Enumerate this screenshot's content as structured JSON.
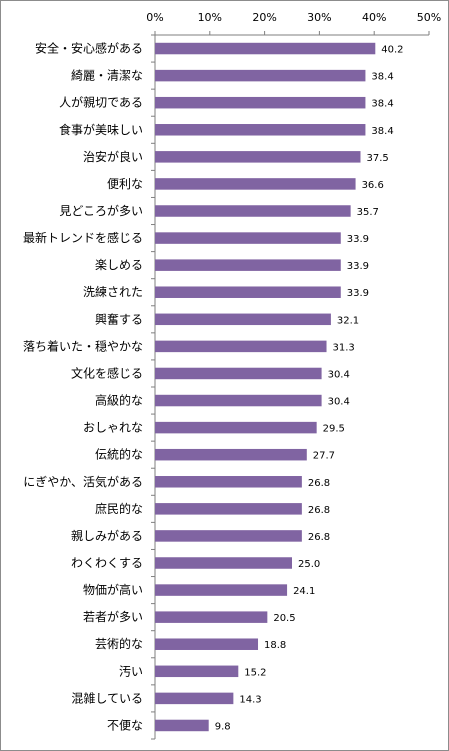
{
  "chart_data": {
    "type": "bar",
    "orientation": "horizontal",
    "categories": [
      "安全・安心感がある",
      "綺麗・清潔な",
      "人が親切である",
      "食事が美味しい",
      "治安が良い",
      "便利な",
      "見どころが多い",
      "最新トレンドを感じる",
      "楽しめる",
      "洗練された",
      "興奮する",
      "落ち着いた・穏やかな",
      "文化を感じる",
      "高級的な",
      "おしゃれな",
      "伝統的な",
      "にぎやか、活気がある",
      "庶民的な",
      "親しみがある",
      "わくわくする",
      "物価が高い",
      "若者が多い",
      "芸術的な",
      "汚い",
      "混雑している",
      "不便な"
    ],
    "values": [
      40.2,
      38.4,
      38.4,
      38.4,
      37.5,
      36.6,
      35.7,
      33.9,
      33.9,
      33.9,
      32.1,
      31.3,
      30.4,
      30.4,
      29.5,
      27.7,
      26.8,
      26.8,
      26.8,
      25.0,
      24.1,
      20.5,
      18.8,
      15.2,
      14.3,
      9.8
    ],
    "value_labels": [
      "40.2",
      "38.4",
      "38.4",
      "38.4",
      "37.5",
      "36.6",
      "35.7",
      "33.9",
      "33.9",
      "33.9",
      "32.1",
      "31.3",
      "30.4",
      "30.4",
      "29.5",
      "27.7",
      "26.8",
      "26.8",
      "26.8",
      "25.0",
      "24.1",
      "20.5",
      "18.8",
      "15.2",
      "14.3",
      "9.8"
    ],
    "x_ticks": [
      "0%",
      "10%",
      "20%",
      "30%",
      "40%",
      "50%"
    ],
    "xlim": [
      0,
      50
    ],
    "axis_position": "top",
    "grid": false,
    "legend": "none",
    "bar_color": "#8064a2"
  }
}
